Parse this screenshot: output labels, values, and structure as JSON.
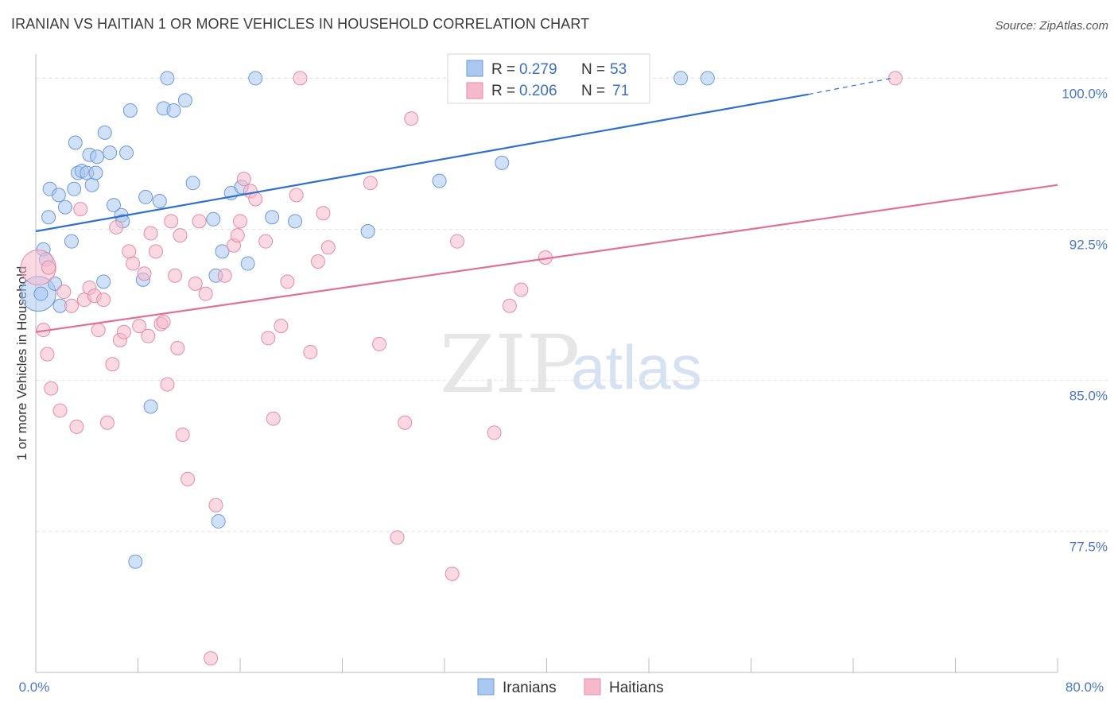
{
  "title": "IRANIAN VS HAITIAN 1 OR MORE VEHICLES IN HOUSEHOLD CORRELATION CHART",
  "source": "Source: ZipAtlas.com",
  "watermark": {
    "zip": "ZIP",
    "atlas": "atlas"
  },
  "legend": {
    "rows": [
      {
        "r_label": "R =",
        "r_value": "0.279",
        "n_label": "N =",
        "n_value": "53",
        "color": "#a9c7ef"
      },
      {
        "r_label": "R =",
        "r_value": "0.206",
        "n_label": "N =",
        "n_value": "71",
        "color": "#f6b9cc"
      }
    ]
  },
  "bottom_legend": [
    {
      "label": "Iranians",
      "color": "#a9c7ef"
    },
    {
      "label": "Haitians",
      "color": "#f6b9cc"
    }
  ],
  "chart_data": {
    "type": "scatter",
    "title": "IRANIAN VS HAITIAN 1 OR MORE VEHICLES IN HOUSEHOLD CORRELATION CHART",
    "xlabel": "",
    "ylabel": "1 or more Vehicles in Household",
    "xlim": [
      0,
      80
    ],
    "ylim": [
      70.5,
      101.2
    ],
    "x_tick_labels": [
      "0.0%",
      "80.0%"
    ],
    "y_ticks": [
      {
        "value": 77.5,
        "label": "77.5%"
      },
      {
        "value": 85.0,
        "label": "85.0%"
      },
      {
        "value": 92.5,
        "label": "92.5%"
      },
      {
        "value": 100.0,
        "label": "100.0%"
      }
    ],
    "grid": "horizontal dashed",
    "legend_position": "top-center",
    "series": [
      {
        "name": "Iranians",
        "color": "#a9c7ef",
        "stroke": "#6d9ad9",
        "line_color": "#2e6fcf",
        "trend": {
          "x0": 0,
          "y0": 92.4,
          "x1": 60.5,
          "y1": 99.2,
          "dash_to_x": 67,
          "dash_to_y": 100.0
        },
        "points": [
          [
            0.6,
            91.5
          ],
          [
            0.8,
            91.0
          ],
          [
            1.0,
            93.1
          ],
          [
            1.1,
            94.5
          ],
          [
            1.5,
            89.8
          ],
          [
            1.8,
            94.2
          ],
          [
            1.9,
            88.7
          ],
          [
            2.3,
            93.6
          ],
          [
            2.8,
            91.9
          ],
          [
            3.0,
            94.5
          ],
          [
            3.1,
            96.8
          ],
          [
            3.3,
            95.3
          ],
          [
            3.6,
            95.4
          ],
          [
            4.0,
            95.3
          ],
          [
            4.2,
            96.2
          ],
          [
            4.4,
            94.7
          ],
          [
            4.7,
            95.3
          ],
          [
            4.8,
            96.1
          ],
          [
            5.3,
            89.9
          ],
          [
            5.4,
            97.3
          ],
          [
            5.8,
            96.3
          ],
          [
            6.1,
            93.7
          ],
          [
            6.7,
            93.2
          ],
          [
            6.8,
            92.9
          ],
          [
            7.1,
            96.3
          ],
          [
            7.4,
            98.4
          ],
          [
            7.8,
            76.0
          ],
          [
            8.4,
            90.0
          ],
          [
            8.6,
            94.1
          ],
          [
            9.0,
            83.7
          ],
          [
            9.7,
            93.9
          ],
          [
            10.0,
            98.5
          ],
          [
            10.3,
            100.0
          ],
          [
            10.8,
            98.4
          ],
          [
            11.7,
            98.9
          ],
          [
            12.3,
            94.8
          ],
          [
            13.9,
            93.0
          ],
          [
            14.1,
            90.2
          ],
          [
            14.3,
            78.0
          ],
          [
            14.6,
            91.4
          ],
          [
            15.3,
            94.3
          ],
          [
            16.1,
            94.6
          ],
          [
            16.6,
            90.8
          ],
          [
            17.2,
            100.0
          ],
          [
            18.5,
            93.1
          ],
          [
            20.3,
            92.9
          ],
          [
            26.0,
            92.4
          ],
          [
            31.6,
            94.9
          ],
          [
            36.5,
            95.8
          ],
          [
            50.5,
            100.0
          ],
          [
            52.6,
            100.0
          ],
          [
            0.4,
            89.3
          ]
        ],
        "big_points": [
          [
            0.2,
            89.3
          ]
        ]
      },
      {
        "name": "Haitians",
        "color": "#f6b9cc",
        "stroke": "#e58aa9",
        "line_color": "#e0709a",
        "trend": {
          "x0": 0,
          "y0": 87.4,
          "x1": 80,
          "y1": 94.7
        },
        "points": [
          [
            0.6,
            87.5
          ],
          [
            0.9,
            86.3
          ],
          [
            1.2,
            84.6
          ],
          [
            1.9,
            83.5
          ],
          [
            2.2,
            89.4
          ],
          [
            2.8,
            88.7
          ],
          [
            3.2,
            82.7
          ],
          [
            3.5,
            93.5
          ],
          [
            3.8,
            89.0
          ],
          [
            4.2,
            89.6
          ],
          [
            4.6,
            89.2
          ],
          [
            4.9,
            87.5
          ],
          [
            5.3,
            89.0
          ],
          [
            5.6,
            82.9
          ],
          [
            6.0,
            85.8
          ],
          [
            6.3,
            92.6
          ],
          [
            6.6,
            87.0
          ],
          [
            6.9,
            87.4
          ],
          [
            7.3,
            91.4
          ],
          [
            7.6,
            90.8
          ],
          [
            8.1,
            87.7
          ],
          [
            8.5,
            90.3
          ],
          [
            8.8,
            87.2
          ],
          [
            9.0,
            92.3
          ],
          [
            9.4,
            91.4
          ],
          [
            9.8,
            87.8
          ],
          [
            10.0,
            87.9
          ],
          [
            10.3,
            84.8
          ],
          [
            10.6,
            92.9
          ],
          [
            10.9,
            90.2
          ],
          [
            11.1,
            86.6
          ],
          [
            11.5,
            82.3
          ],
          [
            11.9,
            80.1
          ],
          [
            12.5,
            89.8
          ],
          [
            12.8,
            92.9
          ],
          [
            13.3,
            89.3
          ],
          [
            13.7,
            71.2
          ],
          [
            14.1,
            78.8
          ],
          [
            14.8,
            90.2
          ],
          [
            15.5,
            91.7
          ],
          [
            15.8,
            92.2
          ],
          [
            16.0,
            92.9
          ],
          [
            16.3,
            95.0
          ],
          [
            16.8,
            94.4
          ],
          [
            17.2,
            94.0
          ],
          [
            18.0,
            91.9
          ],
          [
            18.2,
            87.1
          ],
          [
            18.6,
            83.1
          ],
          [
            19.2,
            87.7
          ],
          [
            19.7,
            89.9
          ],
          [
            20.4,
            94.2
          ],
          [
            20.7,
            100.0
          ],
          [
            21.5,
            86.4
          ],
          [
            22.1,
            90.9
          ],
          [
            22.5,
            93.3
          ],
          [
            22.9,
            91.6
          ],
          [
            26.2,
            94.8
          ],
          [
            26.9,
            86.8
          ],
          [
            28.3,
            77.2
          ],
          [
            28.9,
            82.9
          ],
          [
            29.4,
            98.0
          ],
          [
            32.6,
            75.4
          ],
          [
            33.0,
            91.9
          ],
          [
            35.9,
            82.4
          ],
          [
            37.1,
            88.7
          ],
          [
            38.0,
            89.5
          ],
          [
            39.9,
            91.1
          ],
          [
            67.3,
            100.0
          ],
          [
            1.0,
            90.6
          ],
          [
            11.3,
            92.2
          ]
        ],
        "big_points": [
          [
            0.2,
            90.6
          ]
        ]
      }
    ]
  }
}
